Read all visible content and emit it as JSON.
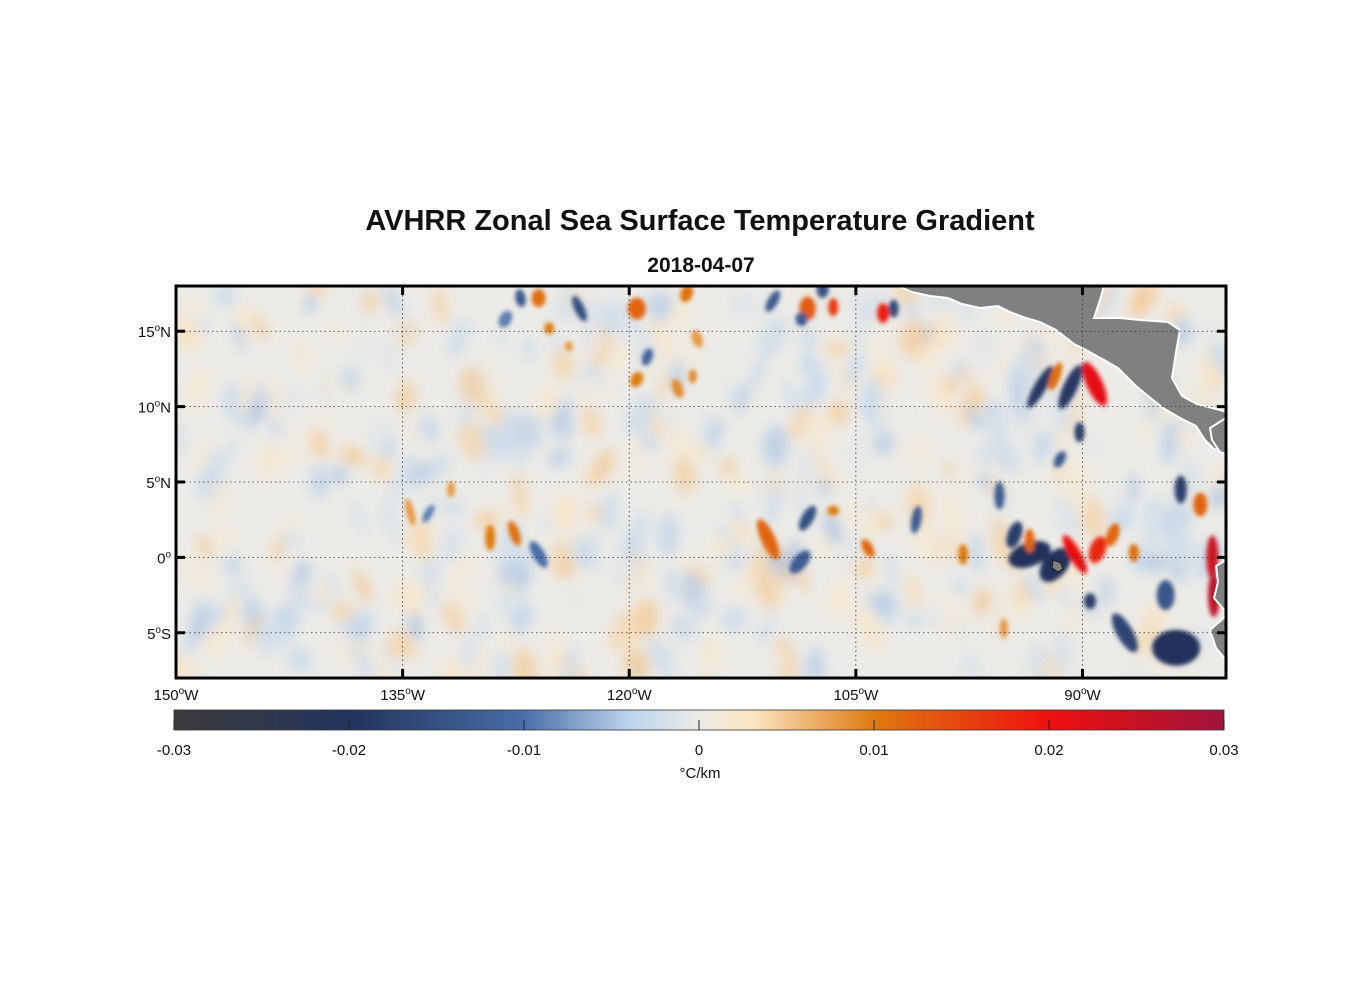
{
  "title": "AVHRR Zonal Sea Surface Temperature Gradient",
  "subtitle": "2018-04-07",
  "map": {
    "lon_range": [
      -150,
      -80.5
    ],
    "lat_range": [
      -8,
      18
    ],
    "lat_ticks": [
      {
        "value": 15,
        "deg": "15",
        "hem": "N"
      },
      {
        "value": 10,
        "deg": "10",
        "hem": "N"
      },
      {
        "value": 5,
        "deg": "5",
        "hem": "N"
      },
      {
        "value": 0,
        "deg": "0",
        "hem": ""
      },
      {
        "value": -5,
        "deg": "5",
        "hem": "S"
      }
    ],
    "lon_ticks": [
      {
        "value": -150,
        "deg": "150",
        "hem": "W"
      },
      {
        "value": -135,
        "deg": "135",
        "hem": "W"
      },
      {
        "value": -120,
        "deg": "120",
        "hem": "W"
      },
      {
        "value": -105,
        "deg": "105",
        "hem": "W"
      },
      {
        "value": -90,
        "deg": "90",
        "hem": "W"
      }
    ],
    "land_color": "#808080",
    "degree_symbol": "o"
  },
  "colorbar": {
    "range": [
      -0.03,
      0.03
    ],
    "ticks": [
      "-0.03",
      "-0.02",
      "-0.01",
      "0",
      "0.01",
      "0.02",
      "0.03"
    ],
    "tick_values": [
      -0.03,
      -0.02,
      -0.01,
      0,
      0.01,
      0.02,
      0.03
    ],
    "label": "°C/km",
    "stops": [
      {
        "value": -0.03,
        "color": "#3c3c3c"
      },
      {
        "value": -0.02,
        "color": "#22335c"
      },
      {
        "value": -0.01,
        "color": "#4a6ea8"
      },
      {
        "value": -0.004,
        "color": "#bcd3ec"
      },
      {
        "value": 0,
        "color": "#ebebe6"
      },
      {
        "value": 0.003,
        "color": "#fbe6c4"
      },
      {
        "value": 0.01,
        "color": "#de7a10"
      },
      {
        "value": 0.02,
        "color": "#ee1010"
      },
      {
        "value": 0.03,
        "color": "#a0143c"
      }
    ]
  }
}
